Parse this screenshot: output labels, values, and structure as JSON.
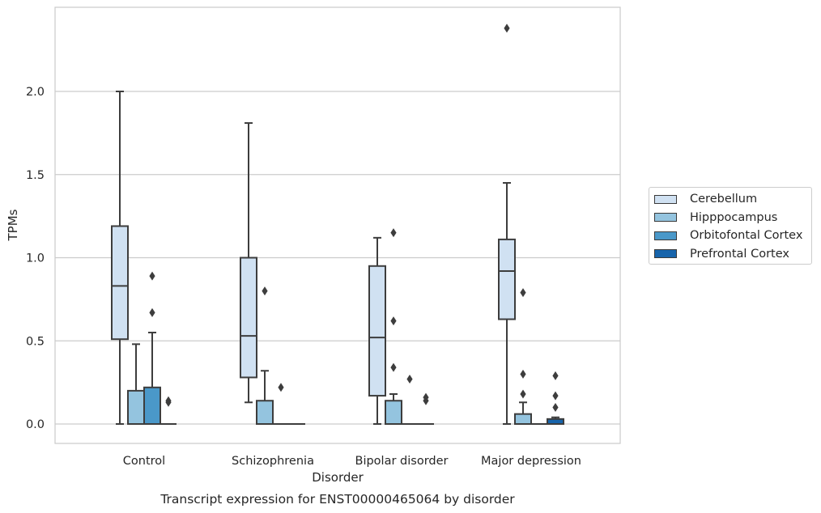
{
  "chart_data": {
    "type": "box",
    "title": "Transcript expression for ENST00000465064 by disorder",
    "xlabel": "Disorder",
    "ylabel": "TPMs",
    "ylim": [
      -0.12,
      2.5
    ],
    "yticks": [
      "0.0",
      "0.5",
      "1.0",
      "1.5",
      "2.0"
    ],
    "grid": true,
    "legend_position": "right",
    "categories": [
      "Control",
      "Schizophrenia",
      "Bipolar disorder",
      "Major depression"
    ],
    "series": [
      {
        "name": "Cerebellum",
        "color": "#d0e1f2",
        "boxes": [
          {
            "min": 0.0,
            "q1": 0.51,
            "median": 0.83,
            "q3": 1.19,
            "max": 2.0,
            "outliers": []
          },
          {
            "min": 0.13,
            "q1": 0.28,
            "median": 0.53,
            "q3": 1.0,
            "max": 1.81,
            "outliers": []
          },
          {
            "min": 0.0,
            "q1": 0.17,
            "median": 0.52,
            "q3": 0.95,
            "max": 1.12,
            "outliers": []
          },
          {
            "min": 0.0,
            "q1": 0.63,
            "median": 0.92,
            "q3": 1.11,
            "max": 1.45,
            "outliers": [
              2.38
            ]
          }
        ]
      },
      {
        "name": "Hipppocampus",
        "color": "#94c4df",
        "boxes": [
          {
            "min": 0.0,
            "q1": 0.0,
            "median": 0.0,
            "q3": 0.2,
            "max": 0.48,
            "outliers": []
          },
          {
            "min": 0.0,
            "q1": 0.0,
            "median": 0.0,
            "q3": 0.14,
            "max": 0.32,
            "outliers": [
              0.8
            ]
          },
          {
            "min": 0.0,
            "q1": 0.0,
            "median": 0.0,
            "q3": 0.14,
            "max": 0.18,
            "outliers": [
              0.34,
              0.62,
              1.15
            ]
          },
          {
            "min": 0.0,
            "q1": 0.0,
            "median": 0.0,
            "q3": 0.06,
            "max": 0.13,
            "outliers": [
              0.18,
              0.3,
              0.79
            ]
          }
        ]
      },
      {
        "name": "Orbitofontal Cortex",
        "color": "#4a98c9",
        "boxes": [
          {
            "min": 0.0,
            "q1": 0.0,
            "median": 0.0,
            "q3": 0.22,
            "max": 0.55,
            "outliers": [
              0.67,
              0.89
            ]
          },
          {
            "min": 0.0,
            "q1": 0.0,
            "median": 0.0,
            "q3": 0.0,
            "max": 0.0,
            "outliers": [
              0.22
            ]
          },
          {
            "min": 0.0,
            "q1": 0.0,
            "median": 0.0,
            "q3": 0.0,
            "max": 0.0,
            "outliers": [
              0.27
            ]
          },
          {
            "min": 0.0,
            "q1": 0.0,
            "median": 0.0,
            "q3": 0.0,
            "max": 0.0,
            "outliers": []
          }
        ]
      },
      {
        "name": "Prefrontal Cortex",
        "color": "#1764ab",
        "boxes": [
          {
            "min": 0.0,
            "q1": 0.0,
            "median": 0.0,
            "q3": 0.0,
            "max": 0.0,
            "outliers": [
              0.13,
              0.14
            ]
          },
          {
            "min": 0.0,
            "q1": 0.0,
            "median": 0.0,
            "q3": 0.0,
            "max": 0.0,
            "outliers": []
          },
          {
            "min": 0.0,
            "q1": 0.0,
            "median": 0.0,
            "q3": 0.0,
            "max": 0.0,
            "outliers": [
              0.14,
              0.16
            ]
          },
          {
            "min": 0.0,
            "q1": 0.0,
            "median": 0.0,
            "q3": 0.03,
            "max": 0.04,
            "outliers": [
              0.1,
              0.17,
              0.29
            ]
          }
        ]
      }
    ]
  }
}
